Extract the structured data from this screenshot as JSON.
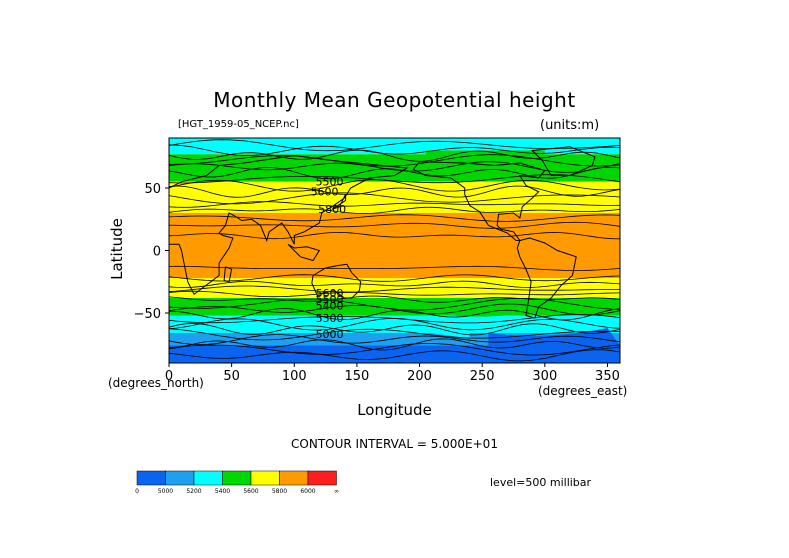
{
  "chart_data": {
    "type": "heatmap",
    "title": "Monthly Mean Geopotential height",
    "source": "[HGT_1959-05_NCEP.nc]",
    "units": "(units:m)",
    "xlabel": "Longitude",
    "ylabel": "Latitude",
    "x_unit_left": "(degrees_north)",
    "x_unit_right": "(degrees_east)",
    "xlim": [
      0,
      360
    ],
    "ylim": [
      -90,
      90
    ],
    "xticks": [
      0,
      50,
      100,
      150,
      200,
      250,
      300,
      350
    ],
    "yticks": [
      -50,
      0,
      50
    ],
    "ytick_labels": [
      "−50",
      "0",
      "50"
    ],
    "contour_interval": "CONTOUR INTERVAL = 5.000E+01",
    "level": "level=500 millibar",
    "contour_labels": [
      "5500",
      "5600",
      "5800",
      "5600",
      "5500",
      "5400",
      "5300",
      "5000"
    ],
    "colorbar": {
      "colors": [
        "#0a64f0",
        "#1ea0f0",
        "#00ffff",
        "#00d700",
        "#ffff00",
        "#ff9b00",
        "#ff1e1e"
      ],
      "labels": [
        "0",
        "5000",
        "5200",
        "5400",
        "5600",
        "5800",
        "6000",
        "∞"
      ]
    },
    "bands": [
      {
        "lat_top": 90,
        "lat_bot": 77,
        "color": "#00ffff"
      },
      {
        "lat_top": 77,
        "lat_bot": 55,
        "color": "#00d700"
      },
      {
        "lat_top": 55,
        "lat_bot": 30,
        "color": "#ffff00"
      },
      {
        "lat_top": 30,
        "lat_bot": -22,
        "color": "#ff9b00"
      },
      {
        "lat_top": -22,
        "lat_bot": -38,
        "color": "#ffff00"
      },
      {
        "lat_top": -38,
        "lat_bot": -52,
        "color": "#00d700"
      },
      {
        "lat_top": -52,
        "lat_bot": -66,
        "color": "#00ffff"
      },
      {
        "lat_top": -66,
        "lat_bot": -76,
        "color": "#1ea0f0"
      },
      {
        "lat_top": -76,
        "lat_bot": -90,
        "color": "#0a64f0"
      }
    ]
  }
}
